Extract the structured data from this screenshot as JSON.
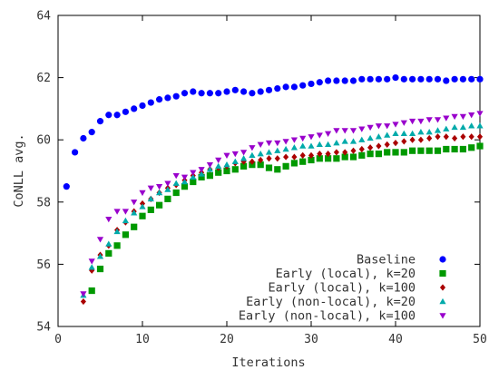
{
  "chart_data": {
    "type": "scatter",
    "title": "",
    "xlabel": "Iterations",
    "ylabel": "CoNLL avg.",
    "xlim": [
      0,
      50
    ],
    "ylim": [
      54,
      64
    ],
    "xticks": [
      "0",
      "10",
      "20",
      "30",
      "40",
      "50"
    ],
    "yticks": [
      "54",
      "56",
      "58",
      "60",
      "62",
      "64"
    ],
    "grid": false,
    "legend_position": "bottom-right",
    "series": [
      {
        "name": "Baseline",
        "color": "#0000ff",
        "marker": "circle",
        "x": [
          1,
          2,
          3,
          4,
          5,
          6,
          7,
          8,
          9,
          10,
          11,
          12,
          13,
          14,
          15,
          16,
          17,
          18,
          19,
          20,
          21,
          22,
          23,
          24,
          25,
          26,
          27,
          28,
          29,
          30,
          31,
          32,
          33,
          34,
          35,
          36,
          37,
          38,
          39,
          40,
          41,
          42,
          43,
          44,
          45,
          46,
          47,
          48,
          49,
          50
        ],
        "y": [
          58.5,
          59.6,
          60.05,
          60.25,
          60.6,
          60.8,
          60.8,
          60.9,
          61.0,
          61.1,
          61.2,
          61.3,
          61.35,
          61.4,
          61.5,
          61.55,
          61.5,
          61.5,
          61.5,
          61.55,
          61.6,
          61.55,
          61.5,
          61.55,
          61.6,
          61.65,
          61.7,
          61.7,
          61.75,
          61.8,
          61.85,
          61.9,
          61.9,
          61.9,
          61.9,
          61.95,
          61.95,
          61.95,
          61.95,
          62.0,
          61.95,
          61.95,
          61.95,
          61.95,
          61.95,
          61.9,
          61.95,
          61.95,
          61.95,
          61.95
        ]
      },
      {
        "name": "Early (local), k=20",
        "color": "#009900",
        "marker": "square",
        "x": [
          4,
          5,
          6,
          7,
          8,
          9,
          10,
          11,
          12,
          13,
          14,
          15,
          16,
          17,
          18,
          19,
          20,
          21,
          22,
          23,
          24,
          25,
          26,
          27,
          28,
          29,
          30,
          31,
          32,
          33,
          34,
          35,
          36,
          37,
          38,
          39,
          40,
          41,
          42,
          43,
          44,
          45,
          46,
          47,
          48,
          49,
          50
        ],
        "y": [
          55.15,
          55.85,
          56.35,
          56.6,
          56.95,
          57.2,
          57.55,
          57.75,
          57.9,
          58.1,
          58.3,
          58.5,
          58.65,
          58.8,
          58.85,
          58.95,
          59.0,
          59.05,
          59.15,
          59.2,
          59.2,
          59.1,
          59.05,
          59.15,
          59.25,
          59.3,
          59.35,
          59.4,
          59.4,
          59.4,
          59.45,
          59.45,
          59.5,
          59.55,
          59.55,
          59.6,
          59.6,
          59.6,
          59.65,
          59.65,
          59.65,
          59.65,
          59.7,
          59.7,
          59.7,
          59.75,
          59.8
        ]
      },
      {
        "name": "Early (local), k=100",
        "color": "#aa0000",
        "marker": "diamond",
        "x": [
          3,
          4,
          5,
          6,
          7,
          8,
          9,
          10,
          11,
          12,
          13,
          14,
          15,
          16,
          17,
          18,
          19,
          20,
          21,
          22,
          23,
          24,
          25,
          26,
          27,
          28,
          29,
          30,
          31,
          32,
          33,
          34,
          35,
          36,
          37,
          38,
          39,
          40,
          41,
          42,
          43,
          44,
          45,
          46,
          47,
          48,
          49,
          50
        ],
        "y": [
          54.8,
          55.8,
          56.3,
          56.6,
          57.1,
          57.35,
          57.7,
          57.95,
          58.1,
          58.3,
          58.45,
          58.55,
          58.7,
          58.85,
          58.95,
          59.05,
          59.1,
          59.15,
          59.25,
          59.3,
          59.3,
          59.35,
          59.4,
          59.4,
          59.45,
          59.45,
          59.5,
          59.5,
          59.55,
          59.55,
          59.6,
          59.6,
          59.65,
          59.7,
          59.75,
          59.8,
          59.85,
          59.9,
          59.95,
          60.0,
          60.0,
          60.05,
          60.1,
          60.1,
          60.05,
          60.1,
          60.1,
          60.1
        ]
      },
      {
        "name": "Early (non-local), k=20",
        "color": "#00aaaa",
        "marker": "triangle-up",
        "x": [
          3,
          4,
          5,
          6,
          7,
          8,
          9,
          10,
          11,
          12,
          13,
          14,
          15,
          16,
          17,
          18,
          19,
          20,
          21,
          22,
          23,
          24,
          25,
          26,
          27,
          28,
          29,
          30,
          31,
          32,
          33,
          34,
          35,
          36,
          37,
          38,
          39,
          40,
          41,
          42,
          43,
          44,
          45,
          46,
          47,
          48,
          49,
          50
        ],
        "y": [
          55.0,
          55.9,
          56.25,
          56.65,
          57.05,
          57.4,
          57.65,
          57.85,
          58.1,
          58.3,
          58.4,
          58.6,
          58.65,
          58.8,
          58.9,
          59.05,
          59.15,
          59.2,
          59.3,
          59.4,
          59.5,
          59.55,
          59.6,
          59.65,
          59.7,
          59.75,
          59.8,
          59.8,
          59.85,
          59.85,
          59.9,
          59.95,
          59.95,
          60.0,
          60.05,
          60.1,
          60.15,
          60.2,
          60.2,
          60.2,
          60.25,
          60.25,
          60.3,
          60.35,
          60.4,
          60.4,
          60.45,
          60.45
        ]
      },
      {
        "name": "Early (non-local), k=100",
        "color": "#9900cc",
        "marker": "triangle-down",
        "x": [
          3,
          4,
          5,
          6,
          7,
          8,
          9,
          10,
          11,
          12,
          13,
          14,
          15,
          16,
          17,
          18,
          19,
          20,
          21,
          22,
          23,
          24,
          25,
          26,
          27,
          28,
          29,
          30,
          31,
          32,
          33,
          34,
          35,
          36,
          37,
          38,
          39,
          40,
          41,
          42,
          43,
          44,
          45,
          46,
          47,
          48,
          49,
          50
        ],
        "y": [
          55.05,
          56.1,
          56.8,
          57.45,
          57.7,
          57.7,
          58.0,
          58.3,
          58.45,
          58.5,
          58.6,
          58.85,
          58.8,
          58.95,
          59.05,
          59.2,
          59.35,
          59.5,
          59.55,
          59.6,
          59.75,
          59.85,
          59.9,
          59.9,
          59.95,
          60.0,
          60.05,
          60.1,
          60.15,
          60.2,
          60.3,
          60.3,
          60.3,
          60.35,
          60.4,
          60.45,
          60.45,
          60.5,
          60.55,
          60.6,
          60.6,
          60.65,
          60.65,
          60.7,
          60.75,
          60.75,
          60.8,
          60.85
        ]
      }
    ]
  }
}
